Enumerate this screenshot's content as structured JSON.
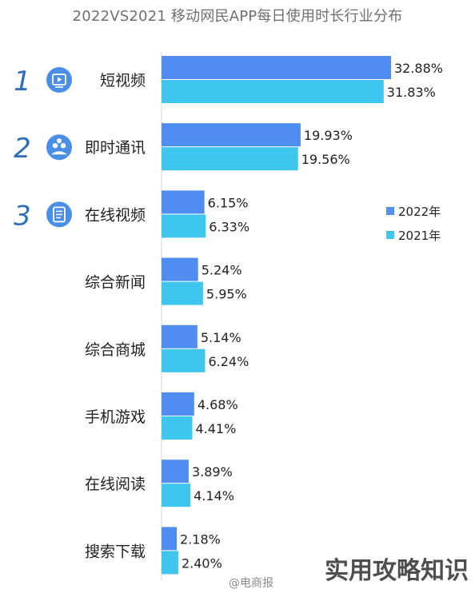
{
  "chart_data": {
    "type": "bar",
    "orientation": "horizontal",
    "title": "2022VS2021 移动网民APP每日使用时长行业分布",
    "categories": [
      "短视频",
      "即时通讯",
      "在线视频",
      "综合新闻",
      "综合商城",
      "手机游戏",
      "在线阅读",
      "搜索下载"
    ],
    "series": [
      {
        "name": "2022年",
        "values": [
          32.88,
          19.93,
          6.15,
          5.24,
          5.14,
          4.68,
          3.89,
          2.18
        ]
      },
      {
        "name": "2021年",
        "values": [
          31.83,
          19.56,
          6.33,
          5.95,
          6.24,
          4.41,
          4.14,
          2.4
        ]
      }
    ],
    "value_labels": [
      [
        "32.88%",
        "19.93%",
        "6.15%",
        "5.24%",
        "5.14%",
        "4.68%",
        "3.89%",
        "2.18%"
      ],
      [
        "31.83%",
        "19.56%",
        "6.33%",
        "5.95%",
        "6.24%",
        "4.41%",
        "4.14%",
        "2.40%"
      ]
    ],
    "ranks": [
      "1",
      "2",
      "3"
    ],
    "rank_icons": [
      "video-play-icon",
      "chat-people-icon",
      "document-icon"
    ],
    "legend_position": "right",
    "grid": false,
    "xlim": [
      0,
      33
    ],
    "colors": {
      "series_2022": "#4f8ef0",
      "series_2021": "#3fc6ee",
      "rank_number": "#2f6fb8",
      "icon_bg": "#4b8ee6",
      "text": "#222222",
      "title": "#6f6f6f",
      "watermark": "#2f2f2f"
    }
  },
  "watermark": {
    "source": "@电商报",
    "overlay": "实用攻略知识"
  }
}
